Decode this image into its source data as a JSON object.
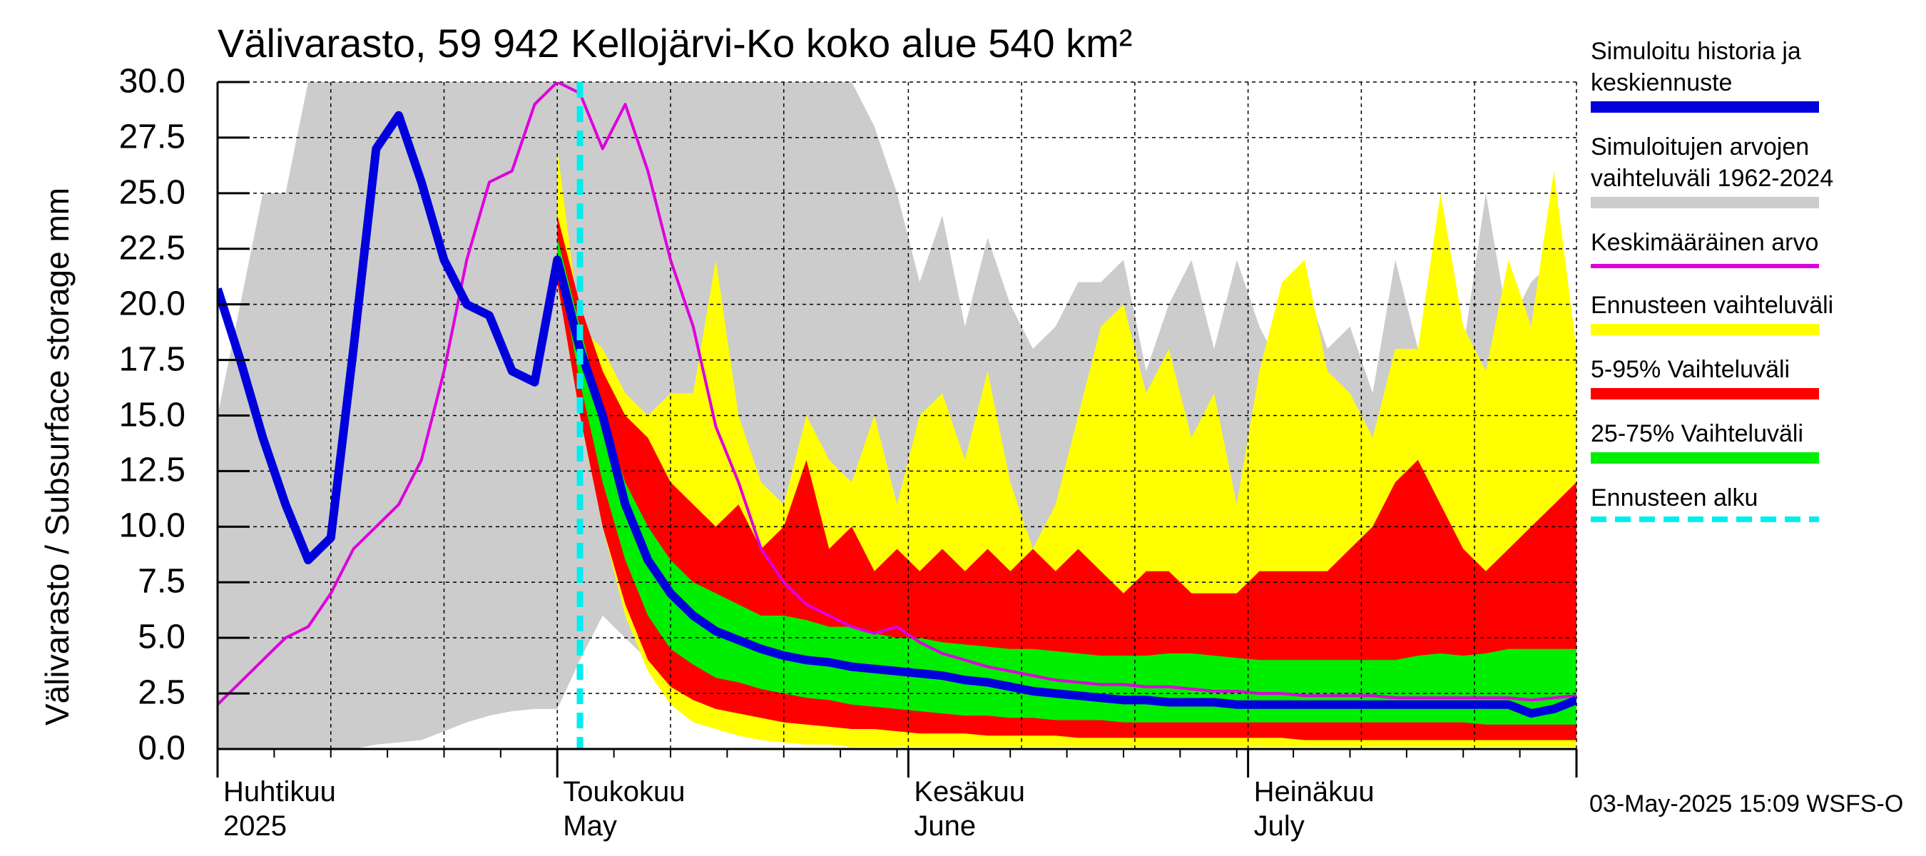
{
  "title": "Välivarasto, 59 942 Kellojärvi-Ko koko alue 540 km²",
  "ylabel": "Välivarasto / Subsurface storage  mm",
  "footer": "03-May-2025 15:09 WSFS-O",
  "x_ticks": [
    {
      "line1": "Huhtikuu",
      "line2": "2025",
      "day": 0
    },
    {
      "line1": "Toukokuu",
      "line2": "May",
      "day": 30
    },
    {
      "line1": "Kesäkuu",
      "line2": "June",
      "day": 61
    },
    {
      "line1": "Heinäkuu",
      "line2": "July",
      "day": 91
    }
  ],
  "y_ticks": [
    "0.0",
    "2.5",
    "5.0",
    "7.5",
    "10.0",
    "12.5",
    "15.0",
    "17.5",
    "20.0",
    "22.5",
    "25.0",
    "27.5",
    "30.0"
  ],
  "legend": [
    {
      "label1": "Simuloitu historia ja",
      "label2": "keskiennuste",
      "color": "#0000dd"
    },
    {
      "label1": "Simuloitujen arvojen",
      "label2": "vaihteluväli 1962-2024",
      "color": "#cccccc"
    },
    {
      "label1": "Keskimääräinen arvo",
      "label2": "",
      "color": "#dd00dd"
    },
    {
      "label1": "Ennusteen vaihteluväli",
      "label2": "",
      "color": "#ffff00"
    },
    {
      "label1": "5-95% Vaihteluväli",
      "label2": "",
      "color": "#ff0000"
    },
    {
      "label1": "25-75% Vaihteluväli",
      "label2": "",
      "color": "#00ee00"
    },
    {
      "label1": "Ennusteen alku",
      "label2": "",
      "color": "#00eeee"
    }
  ],
  "chart_data": {
    "type": "area",
    "x_start": "2025-04-01",
    "x_end": "2025-07-31",
    "forecast_start": "2025-05-03",
    "ylim": [
      0,
      30
    ],
    "grid": true,
    "legend_placement": "right",
    "series": [
      {
        "name": "Simuloitujen arvojen vaihteluväli 1962-2024",
        "kind": "band",
        "color": "#cccccc",
        "x": [
          0,
          2,
          4,
          6,
          8,
          10,
          12,
          14,
          16,
          18,
          20,
          22,
          24,
          26,
          28,
          30,
          32,
          34,
          36,
          38,
          40,
          42,
          44,
          46,
          48,
          50,
          52,
          54,
          56,
          58,
          60,
          62,
          64,
          66,
          68,
          70,
          72,
          74,
          76,
          78,
          80,
          82,
          84,
          86,
          88,
          90,
          92,
          94,
          96,
          98,
          100,
          102,
          104,
          106,
          108,
          110,
          112,
          114,
          116,
          118,
          120
        ],
        "low": [
          0,
          0,
          0,
          0,
          0,
          0,
          0,
          0.2,
          0.3,
          0.4,
          0.8,
          1.2,
          1.5,
          1.7,
          1.8,
          1.8,
          4,
          6,
          5,
          4,
          3,
          2,
          1.5,
          1,
          0.8,
          0.7,
          0.6,
          0.5,
          0.5,
          0.4,
          0.4,
          0.3,
          0.3,
          0.3,
          0.2,
          0.2,
          0.2,
          0.2,
          0.2,
          0.2,
          0.2,
          0.2,
          0.2,
          0.2,
          0.2,
          0.2,
          0.2,
          0.2,
          0.2,
          0.2,
          0.2,
          0.1,
          0.1,
          0.1,
          0.1,
          0.1,
          0.1,
          0.1,
          0.1,
          0.1,
          0.1
        ],
        "high": [
          15,
          20,
          25,
          25,
          30,
          30,
          30,
          30,
          30,
          30,
          30,
          30,
          30,
          30,
          30,
          30,
          30,
          30,
          30,
          30,
          30,
          30,
          30,
          30,
          30,
          30,
          30,
          30,
          30,
          28,
          25,
          21,
          24,
          19,
          23,
          20,
          18,
          19,
          21,
          21,
          22,
          17,
          20,
          22,
          18,
          22,
          19,
          17,
          21,
          18,
          19,
          16,
          22,
          18,
          17,
          18,
          25,
          19,
          21,
          22,
          18
        ]
      },
      {
        "name": "Ennusteen vaihteluväli",
        "kind": "band",
        "color": "#ffff00",
        "x": [
          30,
          32,
          34,
          36,
          38,
          40,
          42,
          44,
          46,
          48,
          50,
          52,
          54,
          56,
          58,
          60,
          62,
          64,
          66,
          68,
          70,
          72,
          74,
          76,
          78,
          80,
          82,
          84,
          86,
          88,
          90,
          92,
          94,
          96,
          98,
          100,
          102,
          104,
          106,
          108,
          110,
          112,
          114,
          116,
          118,
          120
        ],
        "low": [
          21,
          15,
          10,
          6,
          3.5,
          2,
          1.2,
          0.9,
          0.6,
          0.4,
          0.3,
          0.2,
          0.2,
          0.1,
          0.1,
          0.1,
          0.1,
          0.1,
          0.1,
          0.1,
          0.1,
          0.1,
          0.1,
          0.1,
          0.1,
          0.1,
          0.1,
          0.1,
          0.1,
          0.1,
          0.1,
          0.1,
          0.1,
          0.1,
          0.1,
          0.1,
          0.1,
          0.1,
          0.1,
          0.1,
          0.1,
          0.1,
          0.1,
          0.1,
          0.1,
          0.1
        ],
        "high": [
          27,
          19,
          18,
          16,
          15,
          16,
          16,
          22,
          15,
          12,
          11,
          15,
          13,
          12,
          15,
          11,
          15,
          16,
          13,
          17,
          12,
          9,
          11,
          15,
          19,
          20,
          16,
          18,
          14,
          16,
          11,
          17,
          21,
          22,
          17,
          16,
          14,
          18,
          18,
          25,
          19,
          17,
          22,
          19,
          26,
          18
        ]
      },
      {
        "name": "5-95% Vaihteluväli",
        "kind": "band",
        "color": "#ff0000",
        "x": [
          30,
          32,
          34,
          36,
          38,
          40,
          42,
          44,
          46,
          48,
          50,
          52,
          54,
          56,
          58,
          60,
          62,
          64,
          66,
          68,
          70,
          72,
          74,
          76,
          78,
          80,
          82,
          84,
          86,
          88,
          90,
          92,
          94,
          96,
          98,
          100,
          102,
          104,
          106,
          108,
          110,
          112,
          114,
          116,
          118,
          120
        ],
        "low": [
          21,
          15,
          10,
          6.5,
          4,
          2.8,
          2.2,
          1.8,
          1.6,
          1.4,
          1.2,
          1.1,
          1,
          0.9,
          0.9,
          0.8,
          0.7,
          0.7,
          0.7,
          0.6,
          0.6,
          0.6,
          0.6,
          0.5,
          0.5,
          0.5,
          0.5,
          0.5,
          0.5,
          0.5,
          0.5,
          0.5,
          0.5,
          0.4,
          0.4,
          0.4,
          0.4,
          0.4,
          0.4,
          0.4,
          0.4,
          0.4,
          0.4,
          0.4,
          0.4,
          0.4
        ],
        "high": [
          24,
          20,
          17,
          15,
          14,
          12,
          11,
          10,
          11,
          9,
          10,
          13,
          9,
          10,
          8,
          9,
          8,
          9,
          8,
          9,
          8,
          9,
          8,
          9,
          8,
          7,
          8,
          8,
          7,
          7,
          7,
          8,
          8,
          8,
          8,
          9,
          10,
          12,
          13,
          11,
          9,
          8,
          9,
          10,
          11,
          12
        ]
      },
      {
        "name": "25-75% Vaihteluväli",
        "kind": "band",
        "color": "#00ee00",
        "x": [
          30,
          32,
          34,
          36,
          38,
          40,
          42,
          44,
          46,
          48,
          50,
          52,
          54,
          56,
          58,
          60,
          62,
          64,
          66,
          68,
          70,
          72,
          74,
          76,
          78,
          80,
          82,
          84,
          86,
          88,
          90,
          92,
          94,
          96,
          98,
          100,
          102,
          104,
          106,
          108,
          110,
          112,
          114,
          116,
          118,
          120
        ],
        "low": [
          22,
          16.5,
          12,
          8.5,
          6,
          4.5,
          3.8,
          3.2,
          3,
          2.7,
          2.5,
          2.3,
          2.2,
          2,
          1.9,
          1.8,
          1.7,
          1.6,
          1.5,
          1.5,
          1.4,
          1.4,
          1.3,
          1.3,
          1.3,
          1.2,
          1.2,
          1.2,
          1.2,
          1.2,
          1.2,
          1.2,
          1.2,
          1.2,
          1.2,
          1.2,
          1.2,
          1.2,
          1.2,
          1.2,
          1.2,
          1.1,
          1.1,
          1.1,
          1.1,
          1.1
        ],
        "high": [
          23,
          19,
          15,
          12,
          10,
          8.5,
          7.5,
          7,
          6.5,
          6,
          6,
          5.8,
          5.5,
          5.5,
          5.2,
          5,
          5,
          4.8,
          4.7,
          4.6,
          4.5,
          4.5,
          4.4,
          4.3,
          4.2,
          4.2,
          4.2,
          4.3,
          4.3,
          4.2,
          4.1,
          4,
          4,
          4,
          4,
          4,
          4,
          4,
          4.2,
          4.3,
          4.2,
          4.3,
          4.5,
          4.5,
          4.5,
          4.5
        ]
      },
      {
        "name": "Keskimääräinen arvo",
        "kind": "line",
        "color": "#dd00dd",
        "x": [
          0,
          2,
          4,
          6,
          8,
          10,
          12,
          14,
          16,
          18,
          20,
          22,
          24,
          26,
          28,
          30,
          32,
          34,
          36,
          38,
          40,
          42,
          44,
          46,
          48,
          50,
          52,
          54,
          56,
          58,
          60,
          62,
          64,
          66,
          68,
          70,
          72,
          74,
          76,
          78,
          80,
          82,
          84,
          86,
          88,
          90,
          92,
          94,
          96,
          98,
          100,
          102,
          104,
          106,
          108,
          110,
          112,
          114,
          116,
          118,
          120
        ],
        "y": [
          2,
          3,
          4,
          5,
          5.5,
          7,
          9,
          10,
          11,
          13,
          17,
          22,
          25.5,
          26,
          29,
          30,
          29.5,
          27,
          29,
          26,
          22,
          19,
          14.5,
          12,
          9,
          7.5,
          6.5,
          6,
          5.5,
          5.2,
          5.5,
          4.8,
          4.3,
          4.0,
          3.7,
          3.5,
          3.3,
          3.1,
          3.0,
          2.9,
          2.9,
          2.8,
          2.8,
          2.7,
          2.6,
          2.6,
          2.5,
          2.5,
          2.4,
          2.4,
          2.4,
          2.4,
          2.3,
          2.3,
          2.3,
          2.3,
          2.3,
          2.3,
          2.2,
          2.3,
          2.4
        ]
      },
      {
        "name": "Simuloitu historia ja keskiennuste",
        "kind": "line",
        "color": "#0000dd",
        "x": [
          0,
          2,
          4,
          6,
          8,
          10,
          12,
          14,
          16,
          18,
          20,
          22,
          24,
          26,
          28,
          30,
          32,
          34,
          36,
          38,
          40,
          42,
          44,
          46,
          48,
          50,
          52,
          54,
          56,
          58,
          60,
          62,
          64,
          66,
          68,
          70,
          72,
          74,
          76,
          78,
          80,
          82,
          84,
          86,
          88,
          90,
          92,
          94,
          96,
          98,
          100,
          102,
          104,
          106,
          108,
          110,
          112,
          114,
          116,
          118,
          120
        ],
        "y": [
          20.7,
          17.5,
          14,
          11,
          8.5,
          9.5,
          18,
          27,
          28.5,
          25.5,
          22,
          20,
          19.5,
          17,
          16.5,
          22,
          18,
          15,
          11,
          8.5,
          7,
          6,
          5.3,
          4.9,
          4.5,
          4.2,
          4.0,
          3.9,
          3.7,
          3.6,
          3.5,
          3.4,
          3.3,
          3.1,
          3.0,
          2.8,
          2.6,
          2.5,
          2.4,
          2.3,
          2.2,
          2.2,
          2.1,
          2.1,
          2.1,
          2.0,
          2.0,
          2.0,
          2.0,
          2.0,
          2.0,
          2.0,
          2.0,
          2.0,
          2.0,
          2.0,
          2.0,
          2.0,
          1.6,
          1.8,
          2.2
        ]
      }
    ]
  }
}
